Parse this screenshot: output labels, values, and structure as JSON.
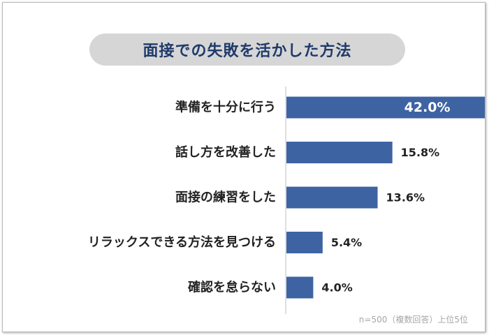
{
  "chart_data": {
    "type": "bar",
    "orientation": "horizontal",
    "title": "面接での失敗を活かした方法",
    "categories": [
      "準備を十分に行う",
      "話し方を改善した",
      "面接の練習をした",
      "リラックスできる方法を見つける",
      "確認を怠らない"
    ],
    "values": [
      42.0,
      15.8,
      13.6,
      5.4,
      4.0
    ],
    "value_labels": [
      "42.0%",
      "15.8%",
      "13.6%",
      "5.4%",
      "4.0%"
    ],
    "unit": "%",
    "xlim": [
      0,
      50
    ],
    "grid": false,
    "legend": "none",
    "note": "n=500（複数回答）上位5位",
    "colors": {
      "bar": "#3e63a3",
      "title_bg": "#d6d6d6",
      "title_text": "#1f3a6b",
      "axis": "#bfbfbf"
    }
  }
}
